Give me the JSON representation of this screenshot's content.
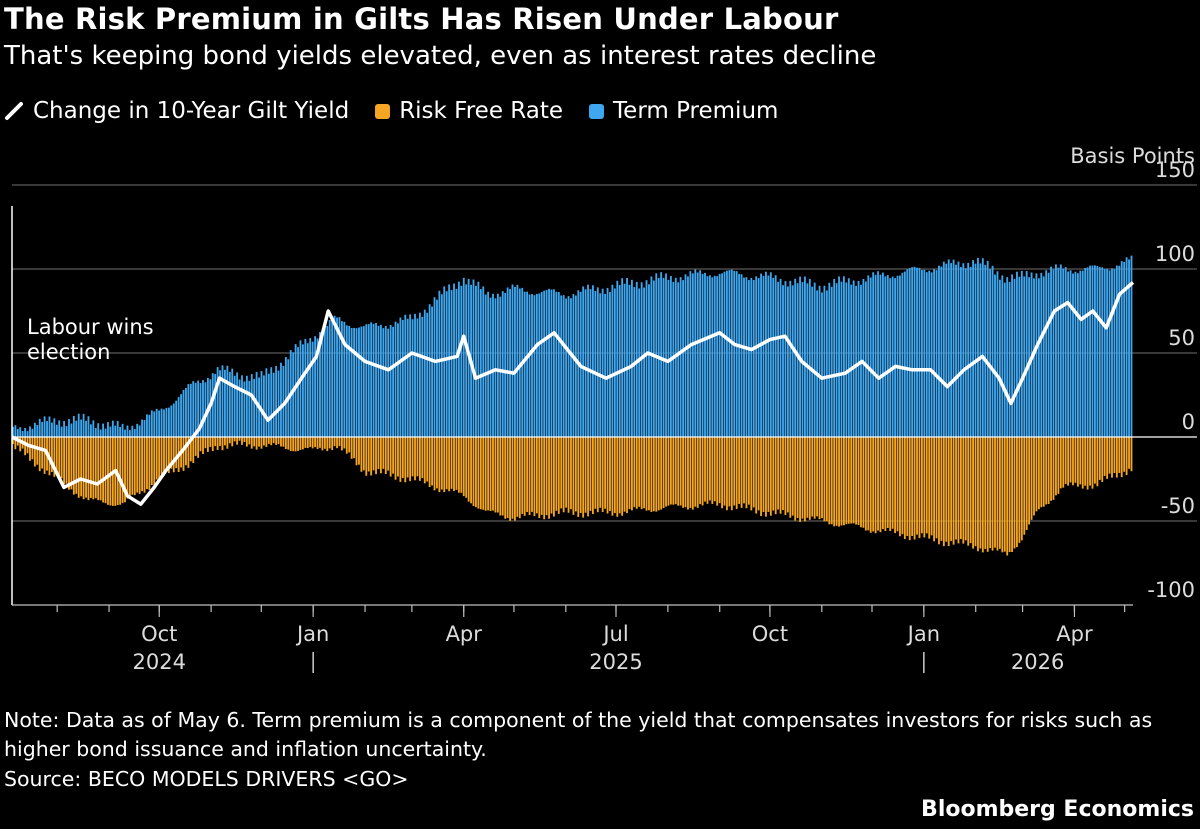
{
  "title": "The Risk Premium in Gilts Has Risen Under Labour",
  "subtitle": "That's keeping bond yields elevated, even as interest rates decline",
  "legend": {
    "items": [
      {
        "label": "Change in 10-Year Gilt Yield",
        "color": "#ffffff",
        "kind": "line"
      },
      {
        "label": "Risk Free Rate",
        "color": "#f5a623",
        "kind": "bar"
      },
      {
        "label": "Term Premium",
        "color": "#3fa7f0",
        "kind": "bar"
      }
    ]
  },
  "note": "Note: Data as of May 6. Term premium is a component of the yield that compensates investors for risks such as higher bond issuance and inflation uncertainty.",
  "source": "Source: BECO MODELS DRIVERS <GO>",
  "brand": "Bloomberg Economics",
  "chart_data": {
    "type": "bar",
    "stacked": true,
    "ylabel": "Basis Points",
    "ylim": [
      -100,
      150
    ],
    "yticks": [
      150,
      100,
      50,
      0,
      -50,
      -100
    ],
    "grid": true,
    "x_range": [
      "2024-07-05",
      "2026-05-06"
    ],
    "xticks": [
      {
        "date": "2024-10-01",
        "label": "Oct"
      },
      {
        "date": "2025-01-01",
        "label": "Jan"
      },
      {
        "date": "2025-04-01",
        "label": "Apr"
      },
      {
        "date": "2025-07-01",
        "label": "Jul"
      },
      {
        "date": "2025-10-01",
        "label": "Oct"
      },
      {
        "date": "2026-01-01",
        "label": "Jan"
      },
      {
        "date": "2026-04-01",
        "label": "Apr"
      }
    ],
    "year_labels": [
      {
        "date": "2024-10-01",
        "label": "2024"
      },
      {
        "date": "2025-07-01",
        "label": "2025"
      },
      {
        "date": "2026-03-10",
        "label": "2026"
      }
    ],
    "year_separators": [
      "2025-01-01",
      "2026-01-01"
    ],
    "annotation": {
      "date": "2024-07-05",
      "label": [
        "Labour wins",
        "election"
      ]
    },
    "series": [
      {
        "name": "Change in 10-Year Gilt Yield",
        "kind": "line",
        "color": "#ffffff",
        "points": [
          [
            "2024-07-05",
            0
          ],
          [
            "2024-07-15",
            -5
          ],
          [
            "2024-07-25",
            -8
          ],
          [
            "2024-08-05",
            -30
          ],
          [
            "2024-08-15",
            -25
          ],
          [
            "2024-08-25",
            -28
          ],
          [
            "2024-09-05",
            -20
          ],
          [
            "2024-09-12",
            -35
          ],
          [
            "2024-09-20",
            -40
          ],
          [
            "2024-09-28",
            -30
          ],
          [
            "2024-10-05",
            -20
          ],
          [
            "2024-10-15",
            -8
          ],
          [
            "2024-10-25",
            5
          ],
          [
            "2024-11-01",
            20
          ],
          [
            "2024-11-06",
            35
          ],
          [
            "2024-11-15",
            30
          ],
          [
            "2024-11-25",
            25
          ],
          [
            "2024-12-05",
            10
          ],
          [
            "2024-12-15",
            20
          ],
          [
            "2024-12-25",
            35
          ],
          [
            "2025-01-03",
            48
          ],
          [
            "2025-01-10",
            75
          ],
          [
            "2025-01-20",
            55
          ],
          [
            "2025-02-01",
            45
          ],
          [
            "2025-02-15",
            40
          ],
          [
            "2025-03-01",
            50
          ],
          [
            "2025-03-15",
            45
          ],
          [
            "2025-03-28",
            48
          ],
          [
            "2025-04-01",
            60
          ],
          [
            "2025-04-08",
            35
          ],
          [
            "2025-04-20",
            40
          ],
          [
            "2025-05-01",
            38
          ],
          [
            "2025-05-15",
            55
          ],
          [
            "2025-05-25",
            62
          ],
          [
            "2025-06-10",
            42
          ],
          [
            "2025-06-25",
            35
          ],
          [
            "2025-07-10",
            42
          ],
          [
            "2025-07-20",
            50
          ],
          [
            "2025-08-01",
            45
          ],
          [
            "2025-08-15",
            55
          ],
          [
            "2025-09-01",
            62
          ],
          [
            "2025-09-10",
            55
          ],
          [
            "2025-09-20",
            52
          ],
          [
            "2025-10-01",
            58
          ],
          [
            "2025-10-10",
            60
          ],
          [
            "2025-10-20",
            45
          ],
          [
            "2025-11-01",
            35
          ],
          [
            "2025-11-15",
            38
          ],
          [
            "2025-11-25",
            45
          ],
          [
            "2025-12-05",
            35
          ],
          [
            "2025-12-15",
            42
          ],
          [
            "2025-12-25",
            40
          ],
          [
            "2026-01-05",
            40
          ],
          [
            "2026-01-15",
            30
          ],
          [
            "2026-01-25",
            40
          ],
          [
            "2026-02-05",
            48
          ],
          [
            "2026-02-15",
            35
          ],
          [
            "2026-02-22",
            20
          ],
          [
            "2026-03-01",
            35
          ],
          [
            "2026-03-10",
            55
          ],
          [
            "2026-03-20",
            75
          ],
          [
            "2026-03-28",
            80
          ],
          [
            "2026-04-05",
            70
          ],
          [
            "2026-04-12",
            75
          ],
          [
            "2026-04-20",
            65
          ],
          [
            "2026-04-28",
            85
          ],
          [
            "2026-05-06",
            92
          ]
        ]
      },
      {
        "name": "Risk Free Rate",
        "kind": "bar",
        "color": "#f5a623",
        "points": [
          [
            "2024-07-05",
            -5
          ],
          [
            "2024-08-01",
            -25
          ],
          [
            "2024-08-20",
            -38
          ],
          [
            "2024-09-10",
            -40
          ],
          [
            "2024-10-01",
            -25
          ],
          [
            "2024-10-20",
            -15
          ],
          [
            "2024-11-05",
            -5
          ],
          [
            "2024-12-01",
            -5
          ],
          [
            "2025-01-01",
            -8
          ],
          [
            "2025-01-15",
            -5
          ],
          [
            "2025-02-01",
            -20
          ],
          [
            "2025-03-01",
            -25
          ],
          [
            "2025-04-01",
            -35
          ],
          [
            "2025-04-15",
            -45
          ],
          [
            "2025-05-01",
            -48
          ],
          [
            "2025-06-01",
            -45
          ],
          [
            "2025-07-01",
            -45
          ],
          [
            "2025-08-01",
            -42
          ],
          [
            "2025-09-01",
            -40
          ],
          [
            "2025-10-01",
            -45
          ],
          [
            "2025-11-01",
            -50
          ],
          [
            "2025-12-01",
            -55
          ],
          [
            "2026-01-01",
            -60
          ],
          [
            "2026-02-01",
            -65
          ],
          [
            "2026-02-20",
            -70
          ],
          [
            "2026-03-01",
            -60
          ],
          [
            "2026-03-10",
            -45
          ],
          [
            "2026-03-25",
            -30
          ],
          [
            "2026-04-15",
            -28
          ],
          [
            "2026-05-06",
            -18
          ]
        ]
      },
      {
        "name": "Term Premium",
        "kind": "bar",
        "color": "#3fa7f0",
        "points": [
          [
            "2024-07-05",
            5
          ],
          [
            "2024-08-01",
            10
          ],
          [
            "2024-08-20",
            10
          ],
          [
            "2024-09-10",
            5
          ],
          [
            "2024-10-01",
            15
          ],
          [
            "2024-10-20",
            30
          ],
          [
            "2024-11-05",
            40
          ],
          [
            "2024-12-01",
            35
          ],
          [
            "2025-01-01",
            60
          ],
          [
            "2025-01-15",
            70
          ],
          [
            "2025-02-01",
            65
          ],
          [
            "2025-03-01",
            70
          ],
          [
            "2025-04-01",
            95
          ],
          [
            "2025-04-15",
            85
          ],
          [
            "2025-05-01",
            88
          ],
          [
            "2025-06-01",
            85
          ],
          [
            "2025-07-01",
            90
          ],
          [
            "2025-08-01",
            95
          ],
          [
            "2025-09-01",
            98
          ],
          [
            "2025-10-01",
            95
          ],
          [
            "2025-11-01",
            90
          ],
          [
            "2025-12-01",
            95
          ],
          [
            "2026-01-01",
            100
          ],
          [
            "2026-02-01",
            105
          ],
          [
            "2026-02-20",
            95
          ],
          [
            "2026-03-01",
            95
          ],
          [
            "2026-03-10",
            98
          ],
          [
            "2026-03-25",
            100
          ],
          [
            "2026-04-15",
            100
          ],
          [
            "2026-05-06",
            105
          ]
        ]
      }
    ]
  }
}
